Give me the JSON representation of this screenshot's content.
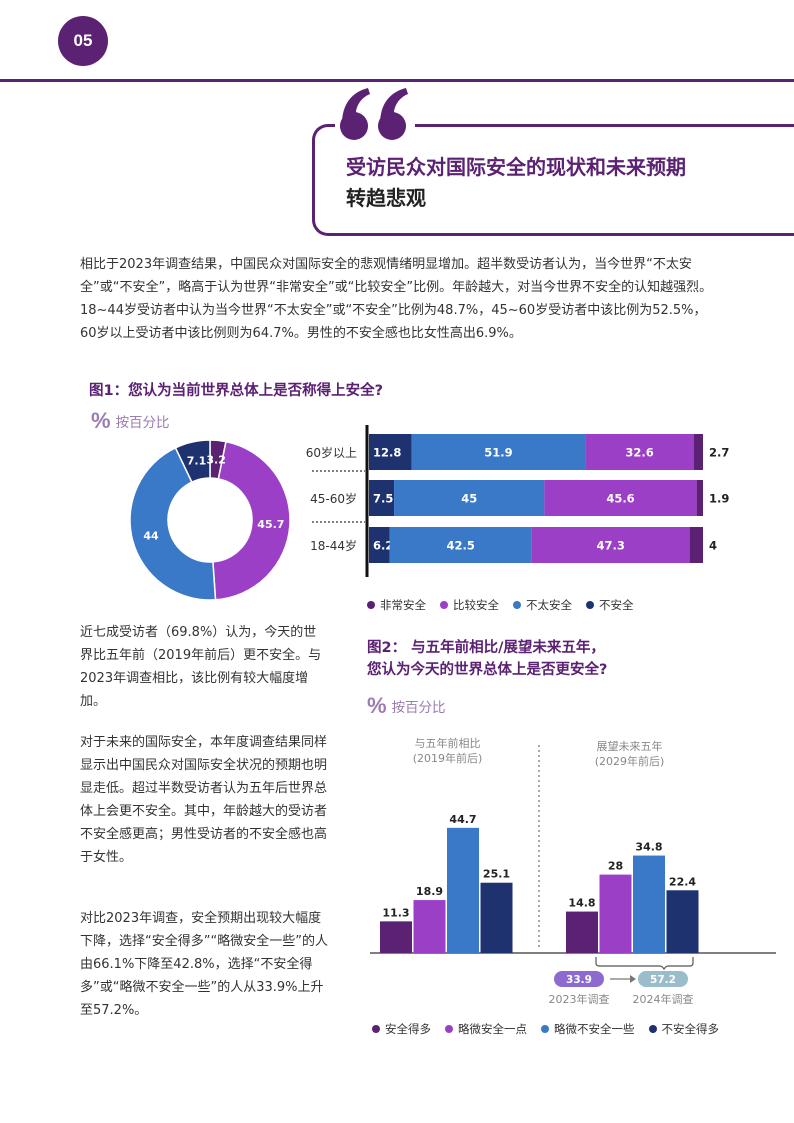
{
  "page": {
    "number": "05",
    "headline_line1": "受访民众对国际安全的现状和未来预期",
    "headline_line2": "转趋悲观",
    "intro": "相比于2023年调查结果，中国民众对国际安全的悲观情绪明显增加。超半数受访者认为，当今世界“不太安全”或“不安全”，略高于认为世界“非常安全”或“比较安全”比例。年龄越大，对当今世界不安全的认知越强烈。18~44岁受访者中认为当今世界“不太安全”或“不安全”比例为48.7%，45~60岁受访者中该比例为52.5%，60岁以上受访者中该比例则为64.7%。男性的不安全感也比女性高出6.9%。",
    "para1": "近七成受访者（69.8%）认为，今天的世界比五年前（2019年前后）更不安全。与2023年调查相比，该比例有较大幅度增加。",
    "para2": "对于未来的国际安全，本年度调查结果同样显示出中国民众对国际安全状况的预期也明显走低。超过半数受访者认为五年后世界总体上会更不安全。其中，年龄越大的受访者不安全感更高；男性受访者的不安全感也高于女性。",
    "para3": "对比2023年调查，安全预期出现较大幅度下降，选择“安全得多”“略微安全一些”的人由66.1%下降至42.8%，选择“不安全得多”或“略微不安全一些”的人从33.9%上升至57.2%。"
  },
  "colors": {
    "very_safe": "#5b2173",
    "fairly_safe": "#9b3fc6",
    "not_very_safe": "#3a78c8",
    "unsafe": "#1f3270",
    "accent": "#5b2173",
    "badge_2023": "#8c6ad0",
    "badge_2024": "#9bbcca"
  },
  "fig1": {
    "title": "图1：您认为当前世界总体上是否称得上安全?",
    "unit_symbol": "%",
    "unit": "按百分比",
    "legend": [
      "非常安全",
      "比较安全",
      "不太安全",
      "不安全"
    ]
  },
  "fig2": {
    "title_line1": "图2：  与五年前相比/展望未来五年，",
    "title_line2": "您认为今天的世界总体上是否更安全?",
    "unit_symbol": "%",
    "unit": "按百分比",
    "group1_line1": "与五年前相比",
    "group1_line2": "(2019年前后)",
    "group2_line1": "展望未来五年",
    "group2_line2": "(2029年前后)",
    "badge_2023": "33.9",
    "badge_2024": "57.2",
    "label_2023": "2023年调查",
    "label_2024": "2024年调查",
    "legend": [
      "安全得多",
      "略微安全一点",
      "略微不安全一些",
      "不安全得多"
    ]
  },
  "chart_data": [
    {
      "type": "pie",
      "labels": [
        "非常安全",
        "比较安全",
        "不太安全",
        "不安全"
      ],
      "values": [
        3.2,
        45.7,
        44,
        7.1
      ]
    },
    {
      "type": "bar",
      "orientation": "horizontal",
      "stacked": true,
      "categories": [
        "60岁以上",
        "45-60岁",
        "18-44岁"
      ],
      "series": [
        {
          "name": "不安全",
          "values": [
            12.8,
            7.5,
            6.2
          ]
        },
        {
          "name": "不太安全",
          "values": [
            51.9,
            45,
            42.5
          ]
        },
        {
          "name": "比较安全",
          "values": [
            32.6,
            45.6,
            47.3
          ]
        },
        {
          "name": "非常安全",
          "values": [
            2.7,
            1.9,
            4
          ]
        }
      ]
    },
    {
      "type": "bar",
      "categories": [
        "与五年前相比",
        "展望未来五年"
      ],
      "series": [
        {
          "name": "安全得多",
          "values": [
            11.3,
            14.8
          ]
        },
        {
          "name": "略微安全一点",
          "values": [
            18.9,
            28
          ]
        },
        {
          "name": "略微不安全一些",
          "values": [
            44.7,
            34.8
          ]
        },
        {
          "name": "不安全得多",
          "values": [
            25.1,
            22.4
          ]
        }
      ]
    }
  ]
}
